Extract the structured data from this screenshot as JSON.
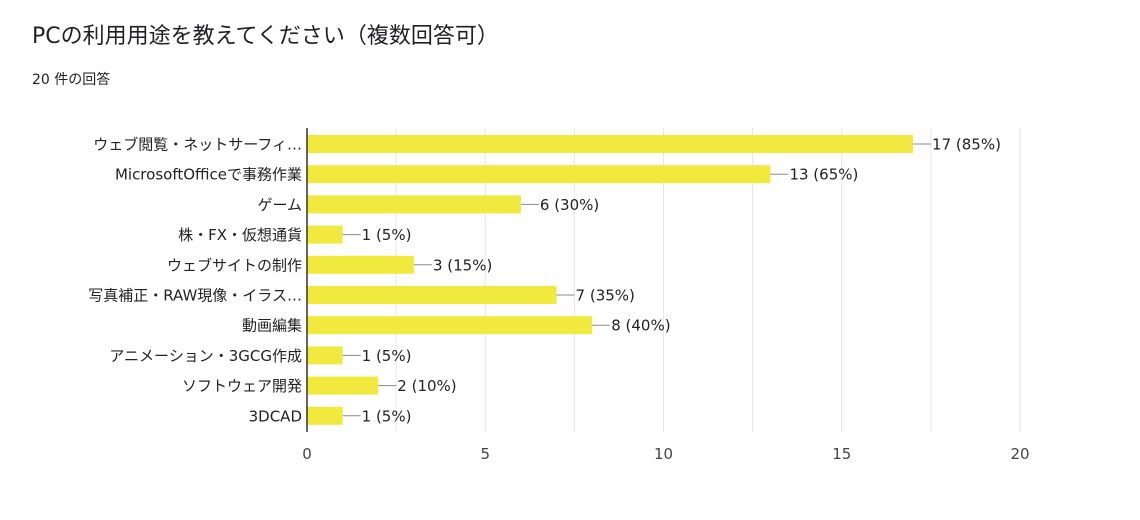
{
  "question": {
    "title": "PCの利用用途を教えてください（複数回答可）",
    "response_count": "20 件の回答"
  },
  "colors": {
    "bar": "#f1e93d",
    "grid": "#e6e6e6",
    "axis": "#333333",
    "text": "#222222",
    "tick": "#444444"
  },
  "chart_data": {
    "type": "bar",
    "orientation": "horizontal",
    "categories": [
      "ウェブ閲覧・ネットサーフィ…",
      "MicrosoftOfficeで事務作業",
      "ゲーム",
      "株・FX・仮想通貨",
      "ウェブサイトの制作",
      "写真補正・RAW現像・イラス…",
      "動画編集",
      "アニメーション・3GCG作成",
      "ソフトウェア開発",
      "3DCAD"
    ],
    "values": [
      17,
      13,
      6,
      1,
      3,
      7,
      8,
      1,
      2,
      1
    ],
    "value_labels": [
      "17 (85%)",
      "13 (65%)",
      "6 (30%)",
      "1 (5%)",
      "3 (15%)",
      "7 (35%)",
      "8 (40%)",
      "1 (5%)",
      "2 (10%)",
      "1 (5%)"
    ],
    "xlim": [
      0,
      20
    ],
    "x_ticks": [
      0,
      5,
      10,
      15,
      20
    ],
    "grid": true
  }
}
